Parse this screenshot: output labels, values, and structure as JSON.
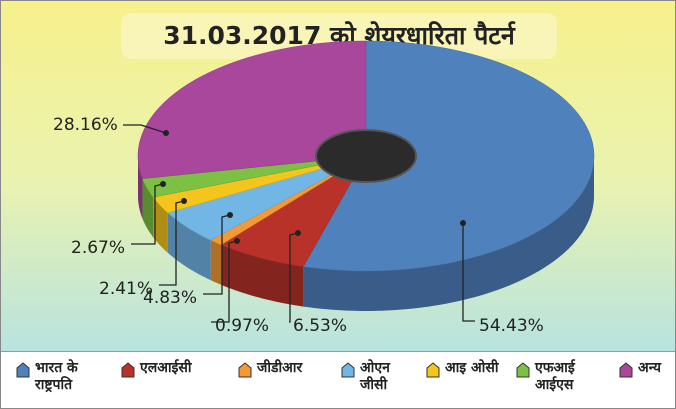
{
  "chart_data": {
    "type": "pie",
    "title": "31.03.2017 को शेयरधारिता पैटर्न",
    "categories": [
      "भारत के राष्ट्रपति",
      "एलआईसी",
      "जीडीआर",
      "ओएन जीसी",
      "आइ ओसी",
      "एफआई आईएस",
      "अन्य"
    ],
    "values": [
      54.43,
      6.53,
      0.97,
      4.83,
      2.41,
      2.67,
      28.16
    ],
    "value_labels": [
      "54.43%",
      "6.53%",
      "0.97%",
      "4.83%",
      "2.41%",
      "2.67%",
      "28.16%"
    ],
    "colors": [
      "#4f81bd",
      "#b8322a",
      "#f39a35",
      "#72b6e6",
      "#f4c51c",
      "#7cc143",
      "#a9479c"
    ],
    "legend": "bottom"
  }
}
